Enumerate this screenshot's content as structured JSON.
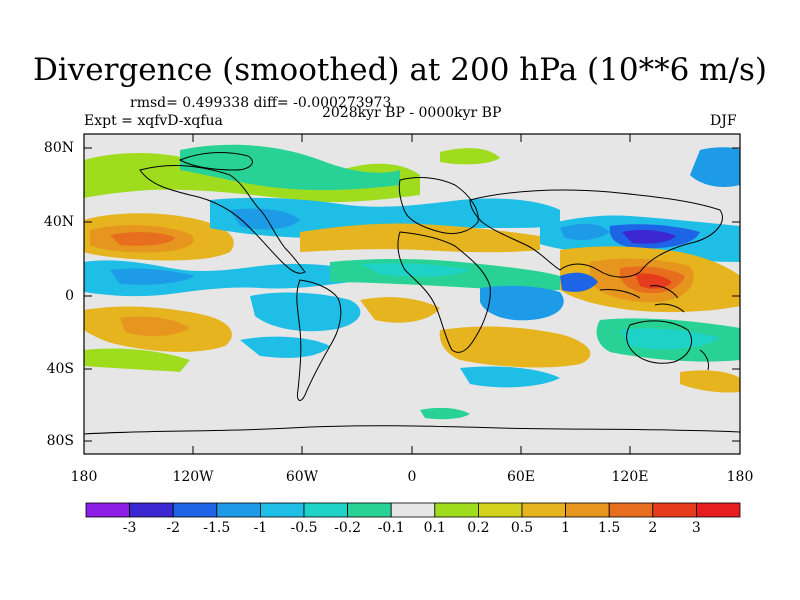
{
  "title": "Divergence (smoothed) at 200 hPa (10**6 m/s)",
  "stats": "rmsd= 0.499338 diff= -0.000273973",
  "experiment": "Expt = xqfvD-xqfua",
  "period": "2028kyr BP - 0000kyr BP",
  "season": "DJF",
  "lat_ticks": [
    "80N",
    "40N",
    "0",
    "40S",
    "80S"
  ],
  "lon_ticks": [
    "180",
    "120W",
    "60W",
    "0",
    "60E",
    "120E",
    "180"
  ],
  "colorbar": {
    "labels": [
      "-3",
      "-2",
      "-1.5",
      "-1",
      "-0.5",
      "-0.2",
      "-0.1",
      "0.1",
      "0.2",
      "0.5",
      "1",
      "1.5",
      "2",
      "3"
    ],
    "colors": [
      "#8c1ee6",
      "#3c28d2",
      "#1e64e6",
      "#1e9be6",
      "#1ebee6",
      "#1ed2c8",
      "#28d296",
      "#e6e6e6",
      "#a0dc1e",
      "#d2d21e",
      "#e6b41e",
      "#e6961e",
      "#e66e1e",
      "#e63c1e",
      "#e61e1e"
    ]
  },
  "map": {
    "background": "#e6e6e6",
    "coast": "#000000"
  }
}
